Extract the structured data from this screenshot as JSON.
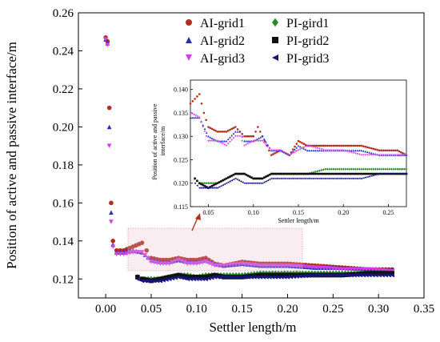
{
  "chart_data": [
    {
      "type": "scatter",
      "xlabel": "Settler length/m",
      "ylabel": "Position of active and passive interface/m",
      "xlim": [
        -0.03,
        0.35
      ],
      "ylim": [
        0.11,
        0.26
      ],
      "xticks": [
        "0.00",
        "0.05",
        "0.10",
        "0.15",
        "0.20",
        "0.25",
        "0.30",
        "0.35"
      ],
      "yticks": [
        "0.12",
        "0.14",
        "0.16",
        "0.18",
        "0.20",
        "0.22",
        "0.24",
        "0.26"
      ],
      "xtick_values": [
        0.0,
        0.05,
        0.1,
        0.15,
        0.2,
        0.25,
        0.3,
        0.35
      ],
      "ytick_values": [
        0.12,
        0.14,
        0.16,
        0.18,
        0.2,
        0.22,
        0.24,
        0.26
      ],
      "legend_position": "top-right",
      "series": [
        {
          "name": "AI-grid1",
          "color": "#b03020",
          "marker": "circle",
          "x": [
            0.0,
            0.002,
            0.004,
            0.006,
            0.008,
            0.012,
            0.02,
            0.03,
            0.04,
            0.045,
            0.05,
            0.06,
            0.07,
            0.08,
            0.09,
            0.1,
            0.11,
            0.12,
            0.13,
            0.15,
            0.17,
            0.2,
            0.23,
            0.26,
            0.29,
            0.315
          ],
          "y": [
            0.247,
            0.245,
            0.21,
            0.16,
            0.14,
            0.135,
            0.135,
            0.137,
            0.139,
            0.135,
            0.131,
            0.13,
            0.13,
            0.131,
            0.13,
            0.13,
            0.131,
            0.128,
            0.127,
            0.129,
            0.128,
            0.128,
            0.127,
            0.126,
            0.125,
            0.125
          ]
        },
        {
          "name": "AI-grid2",
          "color": "#2030c0",
          "marker": "triangle",
          "x": [
            0.0,
            0.002,
            0.004,
            0.006,
            0.008,
            0.012,
            0.02,
            0.03,
            0.04,
            0.05,
            0.06,
            0.07,
            0.08,
            0.09,
            0.1,
            0.11,
            0.12,
            0.13,
            0.15,
            0.17,
            0.2,
            0.23,
            0.26,
            0.29,
            0.315
          ],
          "y": [
            0.246,
            0.244,
            0.2,
            0.155,
            0.138,
            0.134,
            0.134,
            0.135,
            0.134,
            0.13,
            0.129,
            0.129,
            0.13,
            0.129,
            0.129,
            0.13,
            0.128,
            0.127,
            0.128,
            0.127,
            0.127,
            0.126,
            0.126,
            0.125,
            0.125
          ]
        },
        {
          "name": "AI-grid3",
          "color": "#d040e8",
          "marker": "triangle-down",
          "x": [
            0.0,
            0.002,
            0.004,
            0.006,
            0.008,
            0.012,
            0.02,
            0.03,
            0.04,
            0.05,
            0.06,
            0.07,
            0.08,
            0.09,
            0.1,
            0.11,
            0.12,
            0.13,
            0.15,
            0.17,
            0.2,
            0.23,
            0.26,
            0.29,
            0.315
          ],
          "y": [
            0.246,
            0.243,
            0.19,
            0.15,
            0.137,
            0.133,
            0.133,
            0.134,
            0.134,
            0.129,
            0.128,
            0.128,
            0.13,
            0.128,
            0.128,
            0.129,
            0.127,
            0.127,
            0.128,
            0.127,
            0.127,
            0.126,
            0.125,
            0.125,
            0.124
          ]
        },
        {
          "name": "PI-gird1",
          "color": "#2a8a2a",
          "marker": "diamond",
          "x": [
            0.035,
            0.04,
            0.05,
            0.06,
            0.07,
            0.08,
            0.09,
            0.1,
            0.11,
            0.12,
            0.13,
            0.15,
            0.17,
            0.2,
            0.23,
            0.26,
            0.29,
            0.315
          ],
          "y": [
            0.121,
            0.12,
            0.12,
            0.12,
            0.121,
            0.122,
            0.122,
            0.121,
            0.122,
            0.122,
            0.122,
            0.122,
            0.123,
            0.123,
            0.123,
            0.123,
            0.123,
            0.123
          ]
        },
        {
          "name": "PI-grid2",
          "color": "#101010",
          "marker": "square",
          "x": [
            0.035,
            0.04,
            0.05,
            0.06,
            0.07,
            0.08,
            0.09,
            0.1,
            0.11,
            0.12,
            0.13,
            0.15,
            0.17,
            0.2,
            0.23,
            0.26,
            0.29,
            0.315
          ],
          "y": [
            0.121,
            0.12,
            0.119,
            0.12,
            0.121,
            0.122,
            0.121,
            0.121,
            0.121,
            0.122,
            0.121,
            0.121,
            0.122,
            0.122,
            0.122,
            0.122,
            0.123,
            0.123
          ]
        },
        {
          "name": "PI-grid3",
          "color": "#15157a",
          "marker": "triangle-left",
          "x": [
            0.035,
            0.04,
            0.05,
            0.06,
            0.07,
            0.08,
            0.09,
            0.1,
            0.11,
            0.12,
            0.13,
            0.15,
            0.17,
            0.2,
            0.23,
            0.26,
            0.29,
            0.315
          ],
          "y": [
            0.12,
            0.119,
            0.119,
            0.119,
            0.12,
            0.121,
            0.12,
            0.12,
            0.12,
            0.121,
            0.121,
            0.121,
            0.121,
            0.121,
            0.122,
            0.122,
            0.122,
            0.122
          ]
        }
      ]
    },
    {
      "type": "scatter",
      "xlabel": "Settler length/m",
      "ylabel": "Position of active and passive interface/m",
      "xlim": [
        0.03,
        0.27
      ],
      "ylim": [
        0.115,
        0.142
      ],
      "xticks": [
        "0.05",
        "0.10",
        "0.15",
        "0.20",
        "0.25"
      ],
      "yticks": [
        "0.115",
        "0.120",
        "0.125",
        "0.130",
        "0.135",
        "0.140"
      ],
      "xtick_values": [
        0.05,
        0.1,
        0.15,
        0.2,
        0.25
      ],
      "ytick_values": [
        0.115,
        0.12,
        0.125,
        0.13,
        0.135,
        0.14
      ],
      "series": [
        {
          "name": "AI-grid1",
          "color": "#b03020",
          "x": [
            0.03,
            0.035,
            0.04,
            0.045,
            0.05,
            0.06,
            0.07,
            0.08,
            0.085,
            0.09,
            0.1,
            0.105,
            0.11,
            0.115,
            0.12,
            0.13,
            0.14,
            0.15,
            0.16,
            0.17,
            0.18,
            0.2,
            0.22,
            0.24,
            0.26,
            0.27
          ],
          "y": [
            0.137,
            0.138,
            0.139,
            0.135,
            0.132,
            0.131,
            0.131,
            0.132,
            0.131,
            0.13,
            0.13,
            0.132,
            0.13,
            0.128,
            0.126,
            0.127,
            0.126,
            0.129,
            0.128,
            0.128,
            0.128,
            0.128,
            0.128,
            0.127,
            0.127,
            0.126
          ]
        },
        {
          "name": "AI-grid2",
          "color": "#2030c0",
          "x": [
            0.03,
            0.04,
            0.05,
            0.06,
            0.07,
            0.08,
            0.085,
            0.09,
            0.1,
            0.11,
            0.12,
            0.13,
            0.14,
            0.15,
            0.16,
            0.18,
            0.2,
            0.22,
            0.24,
            0.26,
            0.27
          ],
          "y": [
            0.134,
            0.134,
            0.13,
            0.129,
            0.129,
            0.131,
            0.131,
            0.129,
            0.129,
            0.13,
            0.127,
            0.127,
            0.126,
            0.128,
            0.127,
            0.127,
            0.127,
            0.127,
            0.126,
            0.126,
            0.126
          ]
        },
        {
          "name": "AI-grid3",
          "color": "#d040e8",
          "x": [
            0.03,
            0.04,
            0.05,
            0.06,
            0.07,
            0.08,
            0.085,
            0.09,
            0.1,
            0.11,
            0.12,
            0.13,
            0.14,
            0.15,
            0.16,
            0.18,
            0.2,
            0.22,
            0.24,
            0.26,
            0.27
          ],
          "y": [
            0.135,
            0.134,
            0.129,
            0.129,
            0.128,
            0.13,
            0.13,
            0.128,
            0.129,
            0.129,
            0.127,
            0.127,
            0.126,
            0.127,
            0.128,
            0.127,
            0.127,
            0.126,
            0.126,
            0.126,
            0.126
          ]
        },
        {
          "name": "PI-gird1",
          "color": "#2a8a2a",
          "x": [
            0.035,
            0.04,
            0.05,
            0.06,
            0.07,
            0.08,
            0.09,
            0.1,
            0.11,
            0.12,
            0.14,
            0.16,
            0.18,
            0.2,
            0.22,
            0.24,
            0.26,
            0.27
          ],
          "y": [
            0.121,
            0.12,
            0.12,
            0.12,
            0.121,
            0.122,
            0.122,
            0.121,
            0.121,
            0.122,
            0.122,
            0.122,
            0.123,
            0.123,
            0.123,
            0.123,
            0.123,
            0.123
          ]
        },
        {
          "name": "PI-grid2",
          "color": "#101010",
          "x": [
            0.035,
            0.04,
            0.05,
            0.06,
            0.07,
            0.08,
            0.09,
            0.1,
            0.11,
            0.12,
            0.14,
            0.16,
            0.18,
            0.2,
            0.22,
            0.24,
            0.26,
            0.27
          ],
          "y": [
            0.121,
            0.12,
            0.119,
            0.12,
            0.121,
            0.122,
            0.122,
            0.121,
            0.121,
            0.122,
            0.122,
            0.122,
            0.122,
            0.122,
            0.122,
            0.122,
            0.122,
            0.122
          ]
        },
        {
          "name": "PI-grid3",
          "color": "#15157a",
          "x": [
            0.035,
            0.04,
            0.05,
            0.06,
            0.07,
            0.08,
            0.09,
            0.1,
            0.11,
            0.12,
            0.14,
            0.16,
            0.18,
            0.2,
            0.22,
            0.24,
            0.26,
            0.27
          ],
          "y": [
            0.12,
            0.119,
            0.119,
            0.119,
            0.12,
            0.121,
            0.12,
            0.12,
            0.12,
            0.121,
            0.121,
            0.121,
            0.121,
            0.121,
            0.121,
            0.122,
            0.122,
            0.122
          ]
        }
      ]
    }
  ]
}
